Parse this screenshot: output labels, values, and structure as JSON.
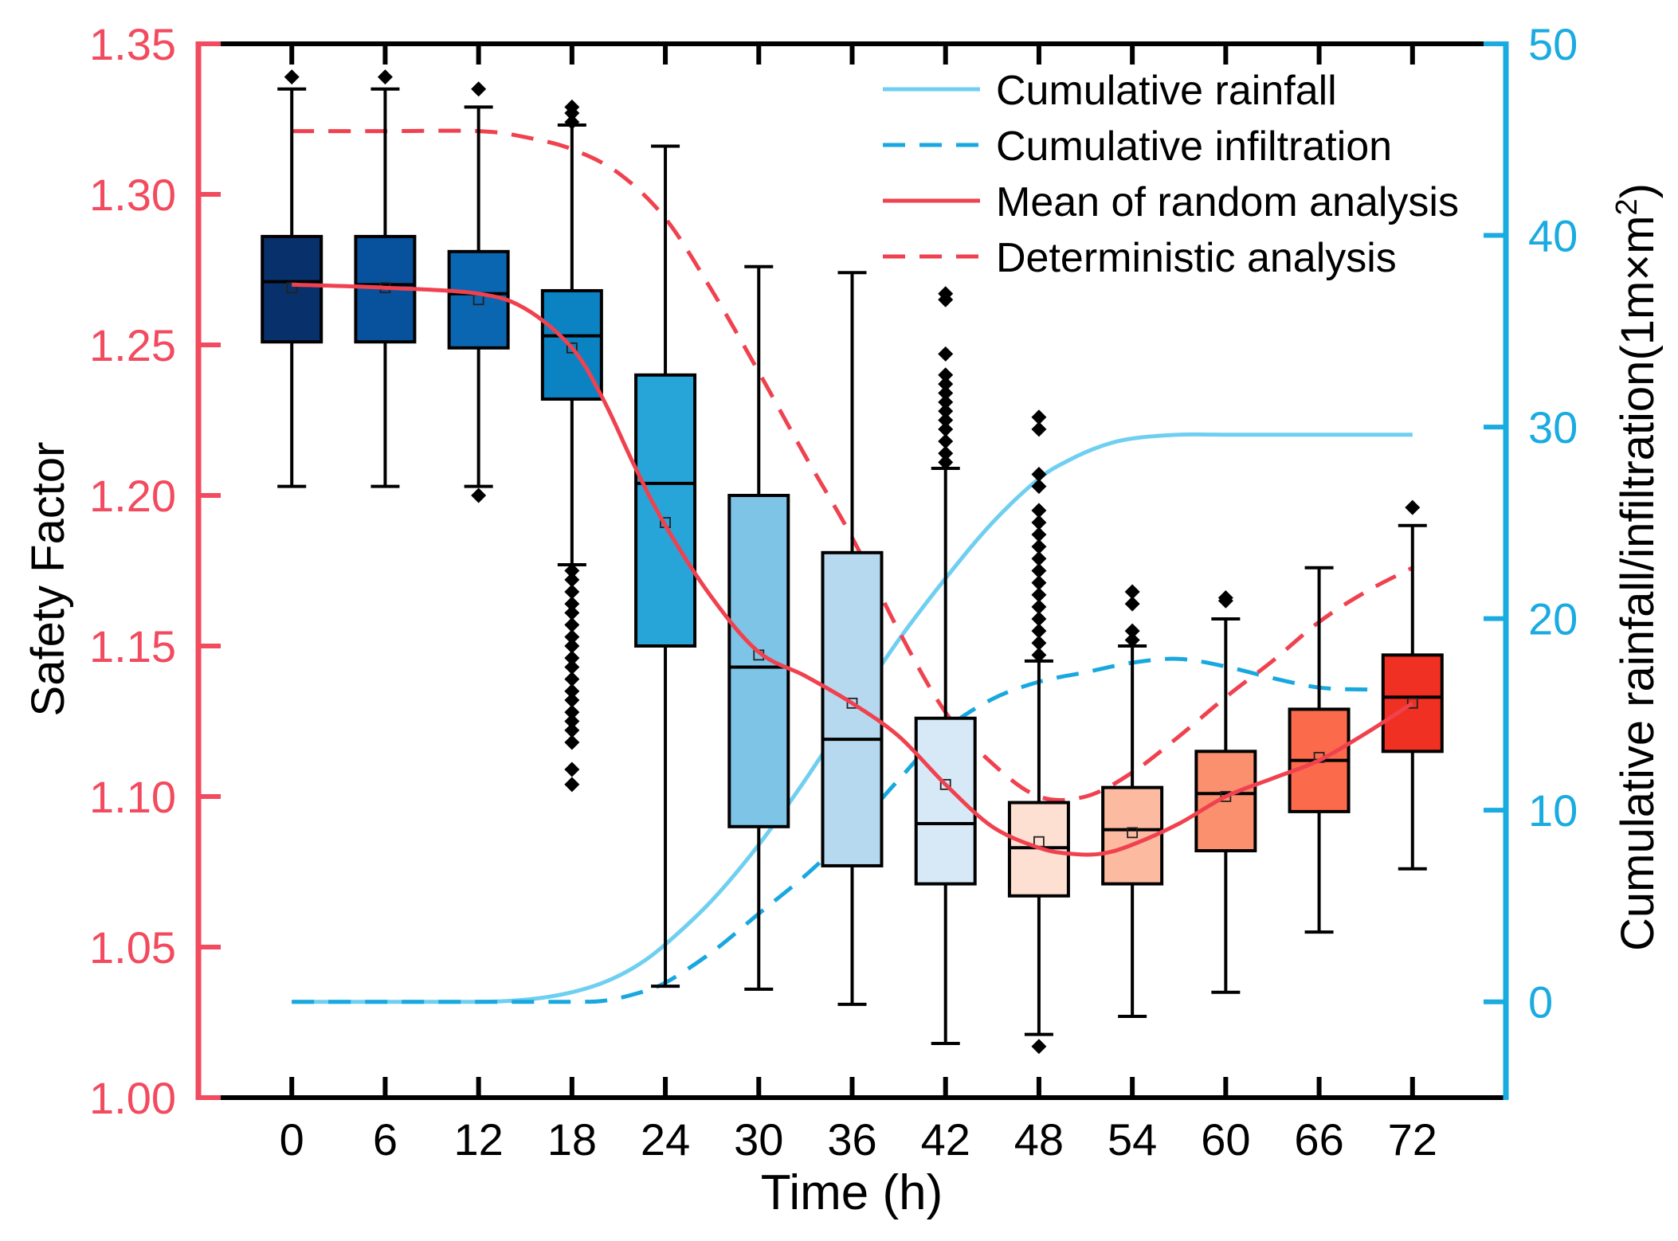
{
  "chart_data": {
    "type": "box",
    "x_label": "Time (h)",
    "y_left_label": "Safety Factor",
    "y_right_label_prefix": "Cumulative rainfall/infiltration(1m×m",
    "y_right_label_sup": "2",
    "y_right_label_suffix": ")",
    "y_left_range": [
      1.0,
      1.35
    ],
    "y_right_range": [
      -5,
      50
    ],
    "x_range": [
      -6,
      78
    ],
    "y_left_ticks": [
      1.0,
      1.05,
      1.1,
      1.15,
      1.2,
      1.25,
      1.3,
      1.35
    ],
    "y_left_tick_labels": [
      "1.00",
      "1.05",
      "1.10",
      "1.15",
      "1.20",
      "1.25",
      "1.30",
      "1.35"
    ],
    "y_right_ticks": [
      0,
      10,
      20,
      30,
      40,
      50
    ],
    "y_right_tick_labels": [
      "0",
      "10",
      "20",
      "30",
      "40",
      "50"
    ],
    "categories": [
      0,
      6,
      12,
      18,
      24,
      30,
      36,
      42,
      48,
      54,
      60,
      66,
      72
    ],
    "category_labels": [
      "0",
      "6",
      "12",
      "18",
      "24",
      "30",
      "36",
      "42",
      "48",
      "54",
      "60",
      "66",
      "72"
    ],
    "colors": {
      "left_axis": "#f24a5e",
      "right_axis": "#1aabe0",
      "rainfall": "#6fcff0",
      "infiltration": "#18a8df",
      "mean": "#f0414f",
      "deterministic": "#f0414f"
    },
    "boxes": [
      {
        "t": 0,
        "whisker_low": 1.203,
        "q1": 1.251,
        "median": 1.271,
        "q3": 1.286,
        "whisker_high": 1.335,
        "mean": 1.269,
        "outliers": [
          1.339
        ],
        "fill": "#08306b"
      },
      {
        "t": 6,
        "whisker_low": 1.203,
        "q1": 1.251,
        "median": 1.27,
        "q3": 1.286,
        "whisker_high": 1.335,
        "mean": 1.269,
        "outliers": [
          1.339
        ],
        "fill": "#08519c"
      },
      {
        "t": 12,
        "whisker_low": 1.203,
        "q1": 1.249,
        "median": 1.267,
        "q3": 1.281,
        "whisker_high": 1.329,
        "mean": 1.265,
        "outliers": [
          1.2,
          1.335
        ],
        "fill": "#0a66b0"
      },
      {
        "t": 18,
        "whisker_low": 1.177,
        "q1": 1.232,
        "median": 1.253,
        "q3": 1.268,
        "whisker_high": 1.323,
        "mean": 1.249,
        "outliers": [
          1.104,
          1.109,
          1.118,
          1.122,
          1.125,
          1.128,
          1.132,
          1.135,
          1.139,
          1.143,
          1.146,
          1.15,
          1.153,
          1.157,
          1.161,
          1.164,
          1.168,
          1.172,
          1.175,
          1.324,
          1.327,
          1.329
        ],
        "fill": "#0b83c2"
      },
      {
        "t": 24,
        "whisker_low": 1.037,
        "q1": 1.15,
        "median": 1.204,
        "q3": 1.24,
        "whisker_high": 1.316,
        "mean": 1.191,
        "outliers": [],
        "fill": "#28a5d8"
      },
      {
        "t": 30,
        "whisker_low": 1.036,
        "q1": 1.09,
        "median": 1.143,
        "q3": 1.2,
        "whisker_high": 1.276,
        "mean": 1.147,
        "outliers": [],
        "fill": "#7ec4e6"
      },
      {
        "t": 36,
        "whisker_low": 1.031,
        "q1": 1.077,
        "median": 1.119,
        "q3": 1.181,
        "whisker_high": 1.274,
        "mean": 1.131,
        "outliers": [],
        "fill": "#b7d9f0"
      },
      {
        "t": 42,
        "whisker_low": 1.018,
        "q1": 1.071,
        "median": 1.091,
        "q3": 1.126,
        "whisker_high": 1.209,
        "mean": 1.104,
        "outliers": [
          1.211,
          1.214,
          1.218,
          1.222,
          1.225,
          1.228,
          1.231,
          1.234,
          1.237,
          1.24,
          1.247,
          1.265,
          1.267
        ],
        "fill": "#d7e9f7"
      },
      {
        "t": 48,
        "whisker_low": 1.021,
        "q1": 1.067,
        "median": 1.083,
        "q3": 1.098,
        "whisker_high": 1.145,
        "mean": 1.085,
        "outliers": [
          1.017,
          1.147,
          1.151,
          1.155,
          1.159,
          1.163,
          1.167,
          1.171,
          1.175,
          1.179,
          1.183,
          1.187,
          1.191,
          1.195,
          1.203,
          1.207,
          1.222,
          1.226
        ],
        "fill": "#fde0d2"
      },
      {
        "t": 54,
        "whisker_low": 1.027,
        "q1": 1.071,
        "median": 1.089,
        "q3": 1.103,
        "whisker_high": 1.15,
        "mean": 1.088,
        "outliers": [
          1.152,
          1.155,
          1.164,
          1.168
        ],
        "fill": "#fcbba1"
      },
      {
        "t": 60,
        "whisker_low": 1.035,
        "q1": 1.082,
        "median": 1.101,
        "q3": 1.115,
        "whisker_high": 1.159,
        "mean": 1.1,
        "outliers": [
          1.165,
          1.166
        ],
        "fill": "#fb906e"
      },
      {
        "t": 66,
        "whisker_low": 1.055,
        "q1": 1.095,
        "median": 1.112,
        "q3": 1.129,
        "whisker_high": 1.176,
        "mean": 1.113,
        "outliers": [],
        "fill": "#fa6a4b"
      },
      {
        "t": 72,
        "whisker_low": 1.076,
        "q1": 1.115,
        "median": 1.133,
        "q3": 1.147,
        "whisker_high": 1.19,
        "mean": 1.131,
        "outliers": [
          1.196
        ],
        "fill": "#f03022"
      }
    ],
    "series": [
      {
        "name": "Cumulative rainfall",
        "axis": "right",
        "style": "solid",
        "color_key": "rainfall",
        "x": [
          0,
          6,
          12,
          14,
          16,
          18,
          20,
          22,
          24,
          27,
          30,
          33,
          36,
          39,
          42,
          45,
          48,
          50,
          52,
          54,
          57,
          60,
          66,
          72
        ],
        "y": [
          0,
          0,
          0,
          0.05,
          0.2,
          0.5,
          1.0,
          1.8,
          3.0,
          5.3,
          8.2,
          11.6,
          15.3,
          18.9,
          22.1,
          25.0,
          27.3,
          28.3,
          29.0,
          29.4,
          29.6,
          29.6,
          29.6,
          29.6
        ]
      },
      {
        "name": "Cumulative infiltration",
        "axis": "right",
        "style": "dashed",
        "color_key": "infiltration",
        "x": [
          0,
          6,
          12,
          18,
          20,
          22,
          24,
          27,
          30,
          33,
          36,
          39,
          42,
          45,
          48,
          51,
          54,
          57,
          60,
          63,
          66,
          69,
          72
        ],
        "y": [
          0,
          0,
          0,
          0,
          0.05,
          0.4,
          1.0,
          2.6,
          4.6,
          6.6,
          8.9,
          11.6,
          14.2,
          15.8,
          16.7,
          17.2,
          17.7,
          17.9,
          17.5,
          16.9,
          16.4,
          16.3,
          16.3
        ]
      },
      {
        "name": "Mean of random analysis",
        "axis": "left",
        "style": "solid",
        "color_key": "mean",
        "x": [
          0,
          6,
          12,
          15,
          18,
          20,
          22,
          24,
          27,
          30,
          33,
          36,
          39,
          42,
          45,
          48,
          50,
          52,
          54,
          57,
          60,
          63,
          66,
          69,
          72
        ],
        "y": [
          1.27,
          1.269,
          1.267,
          1.262,
          1.249,
          1.232,
          1.21,
          1.19,
          1.166,
          1.148,
          1.14,
          1.131,
          1.12,
          1.104,
          1.09,
          1.083,
          1.081,
          1.081,
          1.084,
          1.091,
          1.1,
          1.106,
          1.112,
          1.121,
          1.131
        ]
      },
      {
        "name": "Deterministic analysis",
        "axis": "left",
        "style": "dashed",
        "color_key": "deterministic",
        "x": [
          0,
          6,
          12,
          15,
          18,
          21,
          24,
          27,
          30,
          33,
          36,
          39,
          42,
          45,
          48,
          51,
          54,
          57,
          60,
          63,
          66,
          69,
          72
        ],
        "y": [
          1.321,
          1.321,
          1.321,
          1.319,
          1.315,
          1.307,
          1.292,
          1.268,
          1.241,
          1.213,
          1.186,
          1.155,
          1.128,
          1.111,
          1.1,
          1.1,
          1.108,
          1.12,
          1.133,
          1.145,
          1.158,
          1.168,
          1.176
        ]
      }
    ],
    "legend": {
      "position": "top-right",
      "entries": [
        {
          "label": "Cumulative rainfall",
          "style": "solid",
          "color_key": "rainfall"
        },
        {
          "label": "Cumulative infiltration",
          "style": "dashed",
          "color_key": "infiltration"
        },
        {
          "label": "Mean of random analysis",
          "style": "solid",
          "color_key": "mean"
        },
        {
          "label": "Deterministic analysis",
          "style": "dashed",
          "color_key": "deterministic"
        }
      ]
    }
  }
}
